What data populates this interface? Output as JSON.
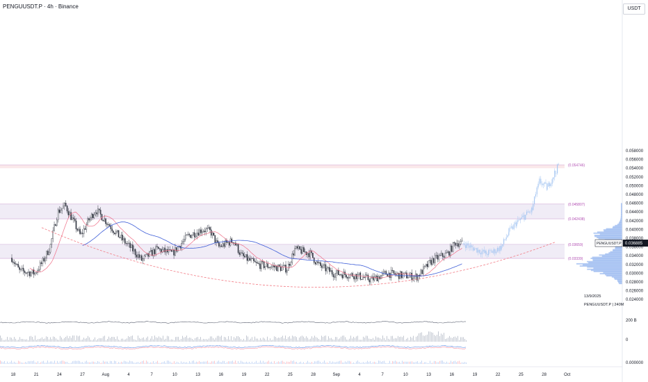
{
  "header": {
    "title": "PENGUUSDT.P · 4h · Binance",
    "currency": "USDT"
  },
  "colors": {
    "candle": "#363a45",
    "projection": "#a7c7f2",
    "ma_blue": "#3e5ed8",
    "ma_pink": "#ef6f87",
    "curve": "#f27a84",
    "zone_fill": "#ebe6f3",
    "zone_line": "#cfa8d6",
    "top_zone": "#f8e0e3",
    "label": "#b24fb3",
    "profile": "#5b8ee6"
  },
  "price_axis": {
    "ticks": [
      "0.058000",
      "0.056000",
      "0.054000",
      "0.052000",
      "0.050000",
      "0.048000",
      "0.046000",
      "0.044000",
      "0.042000",
      "0.040000",
      "0.038000",
      "0.036000",
      "0.034000",
      "0.032000",
      "0.030000",
      "0.028000",
      "0.026000",
      "0.024000"
    ],
    "current_price": "0.036885",
    "current_label": "PENGUUSDT.P"
  },
  "volume_axis": {
    "ticks": [
      "200 B",
      "0",
      "0.000000"
    ]
  },
  "x_axis": {
    "labels": [
      "18",
      "21",
      "24",
      "27",
      "Aug",
      "4",
      "7",
      "10",
      "13",
      "16",
      "19",
      "22",
      "25",
      "28",
      "Sep",
      "4",
      "7",
      "10",
      "13",
      "16",
      "19",
      "22",
      "25",
      "28",
      "Oct"
    ]
  },
  "zones": [
    {
      "label": "(0.054746)"
    },
    {
      "label": "(0.045807)"
    },
    {
      "label": "(0.042438)"
    },
    {
      "label": "(0.03659)"
    },
    {
      "label": "(0.03339)"
    }
  ],
  "info_box": {
    "date": "13/9/2025",
    "text": "PENGUUSDT.P | 240M"
  },
  "chart_data": {
    "type": "candlestick",
    "symbol": "PENGUUSDT.P",
    "interval": "4h",
    "exchange": "Binance",
    "ylim": [
      0.024,
      0.059
    ],
    "current_price": 0.036885,
    "swing_points": [
      [
        "Jul 16",
        0.0335
      ],
      [
        "Jul 17",
        0.0305
      ],
      [
        "Jul 19",
        0.03
      ],
      [
        "Jul 20",
        0.0325
      ],
      [
        "Jul 21",
        0.036
      ],
      [
        "Jul 22",
        0.044
      ],
      [
        "Jul 23",
        0.0455
      ],
      [
        "Jul 24",
        0.042
      ],
      [
        "Jul 25",
        0.0385
      ],
      [
        "Jul 26",
        0.042
      ],
      [
        "Jul 27",
        0.0445
      ],
      [
        "Jul 28",
        0.0425
      ],
      [
        "Jul 30",
        0.0385
      ],
      [
        "Aug 1",
        0.035
      ],
      [
        "Aug 2",
        0.033
      ],
      [
        "Aug 4",
        0.0355
      ],
      [
        "Aug 6",
        0.0345
      ],
      [
        "Aug 8",
        0.0385
      ],
      [
        "Aug 10",
        0.04
      ],
      [
        "Aug 11",
        0.0395
      ],
      [
        "Aug 12",
        0.036
      ],
      [
        "Aug 14",
        0.0375
      ],
      [
        "Aug 15",
        0.034
      ],
      [
        "Aug 17",
        0.032
      ],
      [
        "Aug 19",
        0.0315
      ],
      [
        "Aug 21",
        0.031
      ],
      [
        "Aug 22",
        0.0355
      ],
      [
        "Aug 24",
        0.0345
      ],
      [
        "Aug 25",
        0.032
      ],
      [
        "Aug 27",
        0.03
      ],
      [
        "Aug 30",
        0.0295
      ],
      [
        "Sep 1",
        0.0285
      ],
      [
        "Sep 3",
        0.03
      ],
      [
        "Sep 5",
        0.0295
      ],
      [
        "Sep 7",
        0.0292
      ],
      [
        "Sep 9",
        0.033
      ],
      [
        "Sep 11",
        0.0345
      ],
      [
        "Sep 12",
        0.037
      ],
      [
        "Sep 13",
        0.0368
      ]
    ],
    "projection": [
      [
        "Sep 13",
        0.0368
      ],
      [
        "Sep 14",
        0.036
      ],
      [
        "Sep 16",
        0.0345
      ],
      [
        "Sep 17",
        0.035
      ],
      [
        "Sep 18",
        0.036
      ],
      [
        "Sep 19",
        0.0395
      ],
      [
        "Sep 20",
        0.0415
      ],
      [
        "Sep 21",
        0.043
      ],
      [
        "Sep 22",
        0.0445
      ],
      [
        "Sep 22.5",
        0.048
      ],
      [
        "Sep 23",
        0.051
      ],
      [
        "Sep 24",
        0.0495
      ],
      [
        "Sep 25",
        0.053
      ],
      [
        "Sep 25.5",
        0.0547
      ]
    ],
    "levels": [
      {
        "type": "zone",
        "low": 0.054,
        "high": 0.0548,
        "label": "0.054746"
      },
      {
        "type": "zone",
        "low": 0.042438,
        "high": 0.045807,
        "label": "0.045807 / 0.042438"
      },
      {
        "type": "zone",
        "low": 0.03339,
        "high": 0.03659,
        "label": "0.03659 / 0.03339"
      }
    ],
    "indicators": [
      "MA (blue)",
      "MA (pink)",
      "rounded-bottom curve",
      "volume profile"
    ],
    "volume_axis_ticks": [
      "200 B",
      "0",
      "0.000000"
    ]
  }
}
